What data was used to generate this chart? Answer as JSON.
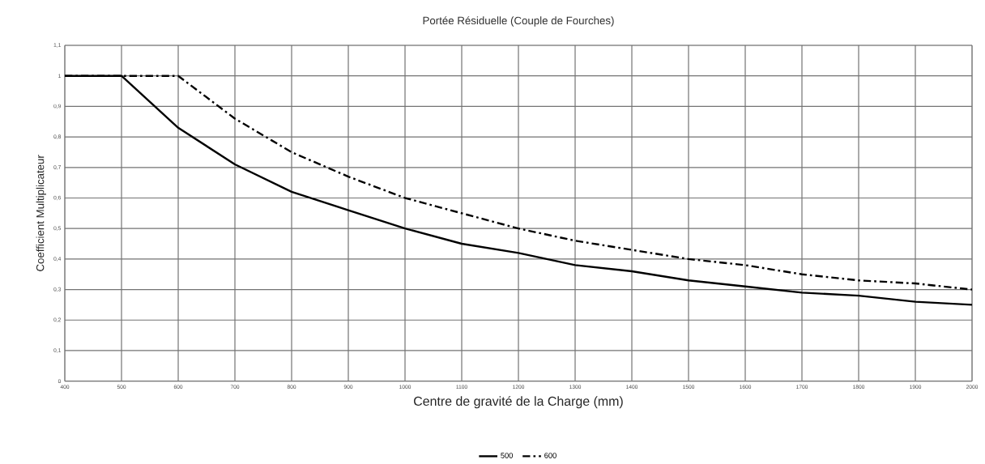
{
  "chart_data": {
    "type": "line",
    "title": "Portée Résiduelle (Couple de Fourches)",
    "xlabel": "Centre de gravité de la Charge (mm)",
    "ylabel": "Coefficient Multiplicateur",
    "x": [
      400,
      500,
      600,
      700,
      800,
      900,
      1000,
      1100,
      1200,
      1300,
      1400,
      1500,
      1600,
      1700,
      1800,
      1900,
      2000
    ],
    "series": [
      {
        "name": "500",
        "color": "#000000",
        "line_style": "solid",
        "values": [
          1,
          1,
          0.83,
          0.71,
          0.62,
          0.56,
          0.5,
          0.45,
          0.42,
          0.38,
          0.36,
          0.33,
          0.31,
          0.29,
          0.28,
          0.26,
          0.25
        ]
      },
      {
        "name": "600",
        "color": "#000000",
        "line_style": "dashed",
        "values": [
          1,
          1,
          1,
          0.86,
          0.75,
          0.67,
          0.6,
          0.55,
          0.5,
          0.46,
          0.43,
          0.4,
          0.38,
          0.35,
          0.33,
          0.32,
          0.3
        ]
      }
    ],
    "xlim": [
      400,
      2000
    ],
    "ylim": [
      0,
      1.1
    ],
    "xticks": [
      400,
      500,
      600,
      700,
      800,
      900,
      1000,
      1100,
      1200,
      1300,
      1400,
      1500,
      1600,
      1700,
      1800,
      1900,
      2000
    ],
    "yticks": [
      0,
      {
        "value": 0.1,
        "label": "0,1"
      },
      {
        "value": 0.2,
        "label": "0,2"
      },
      {
        "value": 0.3,
        "label": "0,3"
      },
      {
        "value": 0.4,
        "label": "0,4"
      },
      {
        "value": 0.5,
        "label": "0,5"
      },
      {
        "value": 0.6,
        "label": "0,6"
      },
      {
        "value": 0.7,
        "label": "0,7"
      },
      {
        "value": 0.8,
        "label": "0,8"
      },
      {
        "value": 0.9,
        "label": "0,9"
      },
      1,
      {
        "value": 1.1,
        "label": "1,1"
      }
    ],
    "grid": true,
    "legend": "bottom",
    "marker": "none"
  }
}
